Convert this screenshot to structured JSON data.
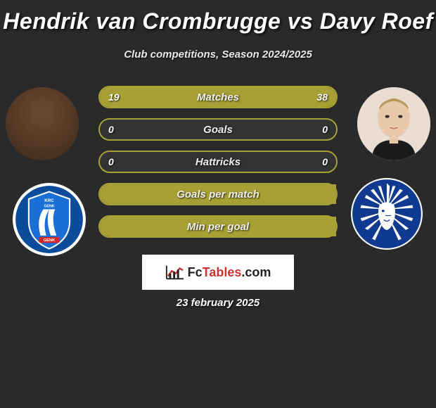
{
  "header": {
    "title": "Hendrik van Crombrugge vs Davy Roef",
    "subtitle": "Club competitions, Season 2024/2025"
  },
  "colors": {
    "bar_border": "#a7a034",
    "bar_fill": "#a7a034",
    "bar_bg": "#333333",
    "background": "#2a2a2a",
    "text_light": "#eeeeee",
    "genk_blue": "#0b4b9b",
    "genk_stripe": "#1a6fd6",
    "gent_blue": "#103a8f",
    "gent_white": "#ffffff",
    "brand_accent": "#cc3333"
  },
  "bars": [
    {
      "label": "Matches",
      "left": "19",
      "right": "38",
      "left_pct": 33,
      "right_pct": 67
    },
    {
      "label": "Goals",
      "left": "0",
      "right": "0",
      "left_pct": 0,
      "right_pct": 0
    },
    {
      "label": "Hattricks",
      "left": "0",
      "right": "0",
      "left_pct": 0,
      "right_pct": 0
    },
    {
      "label": "Goals per match",
      "left": "",
      "right": "",
      "left_pct": 100,
      "right_pct": 0
    },
    {
      "label": "Min per goal",
      "left": "",
      "right": "",
      "left_pct": 100,
      "right_pct": 0
    }
  ],
  "brand": {
    "fc": "Fc",
    "tables": "Tables",
    "dotcom": ".com"
  },
  "date": "23 february 2025",
  "clubs": {
    "left_name": "KRC Genk",
    "right_name": "KAA Gent"
  }
}
